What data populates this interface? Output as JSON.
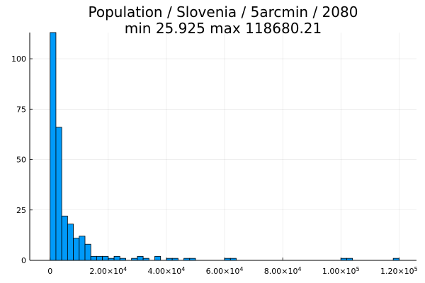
{
  "chart_data": {
    "type": "bar",
    "title": "Population / Slovenia / 5arcmin / 2080",
    "subtitle": "min 25.925  max 118680.21",
    "xlabel": "",
    "ylabel": "",
    "bin_width": 2000,
    "bin_starts": [
      0,
      2000,
      4000,
      6000,
      8000,
      10000,
      12000,
      14000,
      16000,
      18000,
      20000,
      22000,
      24000,
      28000,
      30000,
      32000,
      36000,
      40000,
      42000,
      46000,
      48000,
      60000,
      62000,
      100000,
      102000,
      118000
    ],
    "values": [
      113,
      66,
      22,
      18,
      11,
      12,
      8,
      2,
      2,
      2,
      1,
      2,
      1,
      1,
      2,
      1,
      2,
      1,
      1,
      1,
      1,
      1,
      1,
      1,
      1,
      1
    ],
    "xlim": [
      -7000,
      126000
    ],
    "ylim": [
      0,
      113
    ],
    "x_ticks": [
      0,
      20000,
      40000,
      60000,
      80000,
      100000,
      120000
    ],
    "x_tick_mantissa": [
      "0",
      "2.00×10",
      "4.00×10",
      "6.00×10",
      "8.00×10",
      "1.00×10",
      "1.20×10"
    ],
    "x_tick_exponent": [
      "",
      "4",
      "4",
      "4",
      "4",
      "5",
      "5"
    ],
    "y_ticks": [
      0,
      25,
      50,
      75,
      100
    ],
    "y_tick_labels": [
      "0",
      "25",
      "50",
      "75",
      "100"
    ],
    "grid": true,
    "legend": "none",
    "bar_color": "#009af9",
    "edge_color": "#000000"
  }
}
